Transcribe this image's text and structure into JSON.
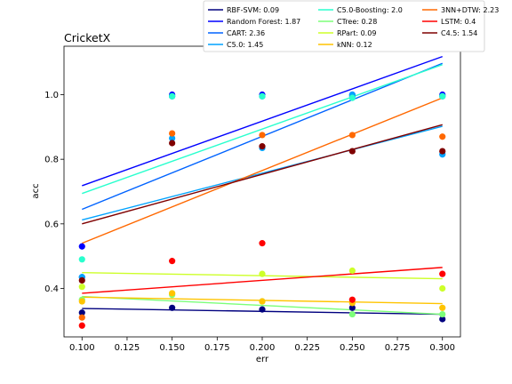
{
  "chart_data": {
    "type": "scatter",
    "title": "CricketX",
    "xlabel": "err",
    "ylabel": "acc",
    "xlim": [
      0.09,
      0.31
    ],
    "ylim": [
      0.25,
      1.15
    ],
    "xticks": [
      "0.100",
      "0.125",
      "0.150",
      "0.175",
      "0.200",
      "0.225",
      "0.250",
      "0.275",
      "0.300"
    ],
    "yticks": [
      "0.4",
      "0.6",
      "0.8",
      "1.0"
    ],
    "x": [
      0.1,
      0.15,
      0.2,
      0.25,
      0.3
    ],
    "grid": false,
    "legend_position": "above plot, right",
    "series": [
      {
        "name": "RBF-SVM: 0.09",
        "color": "#00007f",
        "values": [
          0.325,
          0.34,
          0.335,
          0.34,
          0.305
        ],
        "trend": [
          0.338,
          0.32
        ]
      },
      {
        "name": "Random Forest: 1.87",
        "color": "#0000ff",
        "values": [
          0.53,
          1.0,
          1.0,
          1.0,
          1.0
        ],
        "trend": [
          0.718,
          1.118
        ]
      },
      {
        "name": "CART: 2.36",
        "color": "#0063ff",
        "values": [
          0.435,
          0.995,
          0.995,
          0.995,
          0.995
        ],
        "trend": [
          0.645,
          1.097
        ]
      },
      {
        "name": "C5.0: 1.45",
        "color": "#00a2ff",
        "values": [
          0.435,
          0.865,
          0.835,
          1.0,
          0.815
        ],
        "trend": [
          0.612,
          0.902
        ]
      },
      {
        "name": "C5.0-Boosting: 2.0",
        "color": "#29ffce",
        "values": [
          0.49,
          0.995,
          0.995,
          0.99,
          0.995
        ],
        "trend": [
          0.694,
          1.093
        ]
      },
      {
        "name": "CTree: 0.28",
        "color": "#7dff7a",
        "values": [
          0.365,
          0.38,
          0.36,
          0.32,
          0.32
        ],
        "trend": [
          0.375,
          0.32
        ]
      },
      {
        "name": "RPart: 0.09",
        "color": "#cdff29",
        "values": [
          0.405,
          0.385,
          0.445,
          0.455,
          0.4
        ],
        "trend": [
          0.449,
          0.43
        ]
      },
      {
        "name": "kNN: 0.12",
        "color": "#ffc400",
        "values": [
          0.36,
          0.385,
          0.36,
          0.355,
          0.34
        ],
        "trend": [
          0.373,
          0.353
        ]
      },
      {
        "name": "3NN+DTW: 2.23",
        "color": "#ff6800",
        "values": [
          0.31,
          0.88,
          0.875,
          0.875,
          0.87
        ],
        "trend": [
          0.54,
          0.99
        ]
      },
      {
        "name": "LSTM: 0.4",
        "color": "#ff0000",
        "values": [
          0.285,
          0.485,
          0.54,
          0.365,
          0.445
        ],
        "trend": [
          0.385,
          0.465
        ]
      },
      {
        "name": "C4.5: 1.54",
        "color": "#7f0000",
        "values": [
          0.425,
          0.85,
          0.84,
          0.825,
          0.825
        ],
        "trend": [
          0.6,
          0.907
        ]
      }
    ]
  }
}
